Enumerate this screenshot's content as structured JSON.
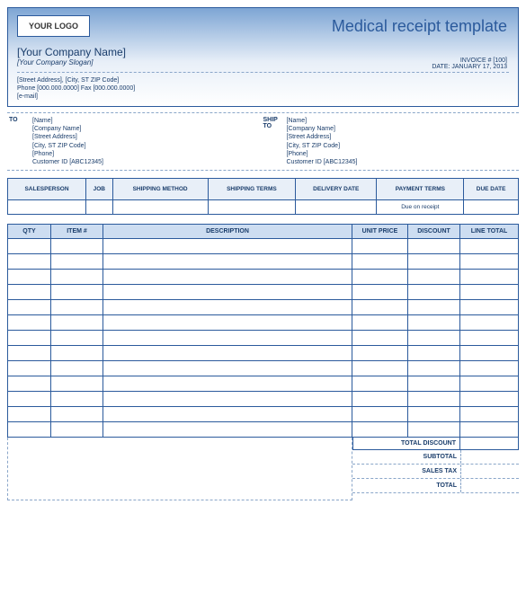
{
  "header": {
    "logo_text": "YOUR LOGO",
    "title": "Medical receipt template",
    "company_name": "[Your Company Name]",
    "slogan": "[Your Company Slogan]",
    "invoice_no_label": "INVOICE # [100]",
    "date_label": "DATE: JANUARY 17, 2013",
    "address_line": "[Street Address], [City, ST  ZIP Code]",
    "phone_line": "Phone [000.000.0000] Fax [000.000.0000]",
    "email_line": "[e-mail]"
  },
  "to": {
    "label": "TO",
    "name": "[Name]",
    "company": "[Company Name]",
    "street": "[Street Address]",
    "city": "[City, ST  ZIP Code]",
    "phone": "[Phone]",
    "cust": "Customer ID [ABC12345]"
  },
  "ship": {
    "label": "SHIP TO",
    "name": "[Name]",
    "company": "[Company Name]",
    "street": "[Street Address]",
    "city": "[City, ST  ZIP Code]",
    "phone": "[Phone]",
    "cust": "Customer ID [ABC12345]"
  },
  "meta": {
    "headers": [
      "SALESPERSON",
      "JOB",
      "SHIPPING METHOD",
      "SHIPPING TERMS",
      "DELIVERY DATE",
      "PAYMENT TERMS",
      "DUE DATE"
    ],
    "values": [
      "",
      "",
      "",
      "",
      "",
      "Due on receipt",
      ""
    ]
  },
  "items": {
    "headers": [
      "QTY",
      "ITEM #",
      "DESCRIPTION",
      "UNIT PRICE",
      "DISCOUNT",
      "LINE TOTAL"
    ],
    "row_count": 13
  },
  "totals": {
    "total_discount": "TOTAL DISCOUNT",
    "subtotal": "SUBTOTAL",
    "sales_tax": "SALES TAX",
    "total": "TOTAL"
  },
  "colors": {
    "border": "#2b5a9c",
    "header_bg_top": "#7da5d4",
    "header_bg_bottom": "#ffffff",
    "meta_header_bg": "#e8eff8",
    "items_header_bg": "#cdddf1",
    "dashed": "#8aa6c9",
    "text": "#1a3d6b"
  }
}
